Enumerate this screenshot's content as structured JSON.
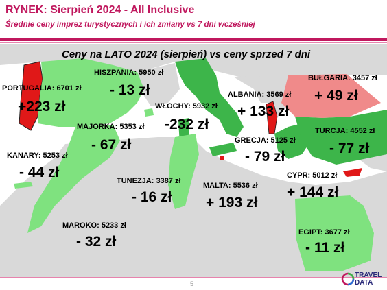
{
  "header": {
    "title": "RYNEK: Sierpień 2024 - All Inclusive",
    "subtitle": "Średnie ceny imprez turystycznych i ich zmiany vs 7 dni wcześniej"
  },
  "map_title": "Ceny na LATO 2024 (sierpień) vs ceny sprzed 7 dni",
  "colors": {
    "brand": "#c0185e",
    "brand_light": "#e783ad",
    "price_up": "#e01818",
    "price_up_light": "#f08a8a",
    "price_down": "#3db54a",
    "price_down_light": "#7fe27f",
    "land": "#d9d9d9",
    "sea": "#ffffff"
  },
  "destinations": [
    {
      "country": "PORTUGALIA:  6701 zł",
      "change": "+223 zł",
      "trend": "up"
    },
    {
      "country": "HISZPANIA: 5950 zł",
      "change": "- 13 zł",
      "trend": "down"
    },
    {
      "country": "WŁOCHY: 5932 zł",
      "change": "-232 zł",
      "trend": "down"
    },
    {
      "country": "ALBANIA: 3569 zł",
      "change": "+ 133 zł",
      "trend": "up"
    },
    {
      "country": "BUŁGARIA: 3457 zł",
      "change": "+ 49 zł",
      "trend": "up"
    },
    {
      "country": "MAJORKA: 5353 zł",
      "change": "- 67 zł",
      "trend": "down"
    },
    {
      "country": "TURCJA: 4552 zł",
      "change": "- 77 zł",
      "trend": "down"
    },
    {
      "country": "GRECJA: 5125 zł",
      "change": "- 79 zł",
      "trend": "down"
    },
    {
      "country": "KANARY: 5253 zł",
      "change": "- 44 zł",
      "trend": "down"
    },
    {
      "country": "TUNEZJA: 3387 zł",
      "change": "- 16 zł",
      "trend": "down"
    },
    {
      "country": "MALTA: 5536 zł",
      "change": "+ 193 zł",
      "trend": "up"
    },
    {
      "country": "CYPR: 5012 zł",
      "change": "+ 144 zł",
      "trend": "up"
    },
    {
      "country": "MAROKO: 5233 zł",
      "change": "- 32 zł",
      "trend": "down"
    },
    {
      "country": "EGIPT: 3677 zł",
      "change": "- 11 zł",
      "trend": "down"
    }
  ],
  "footer": {
    "page_number": "5",
    "logo_line1": "TRAVEL",
    "logo_line2": "DATA"
  }
}
